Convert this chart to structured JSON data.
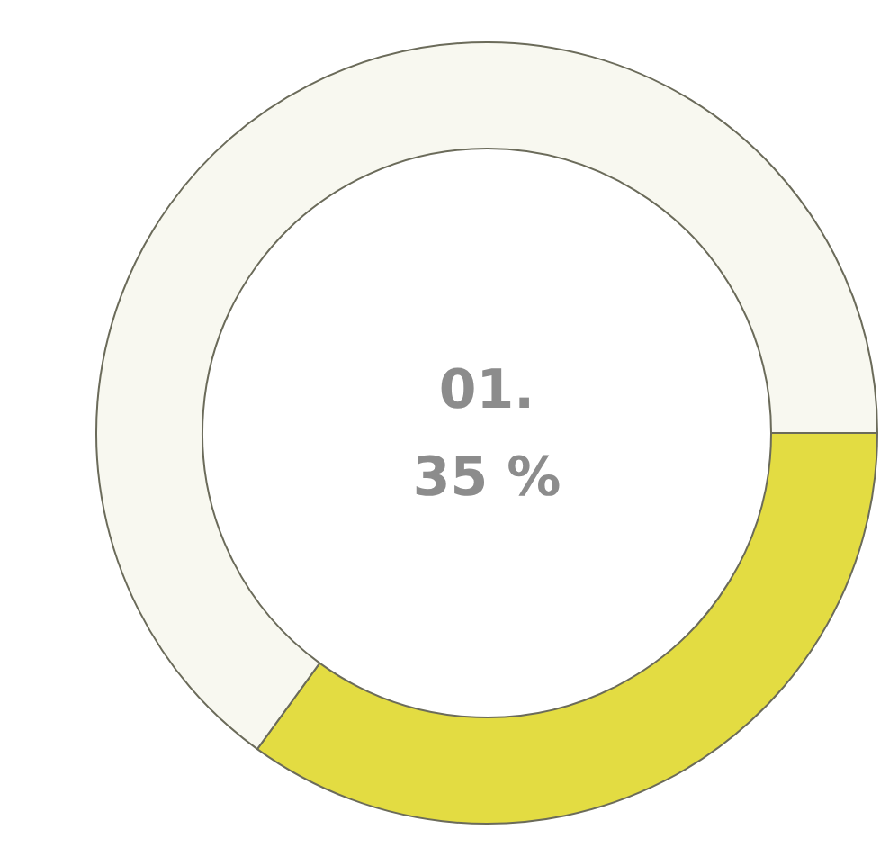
{
  "chart_data": {
    "type": "donut",
    "categories": [
      null,
      null
    ],
    "values": [
      35,
      65
    ],
    "colors": [
      "#e3dc42",
      "#f8f8f0"
    ],
    "annotations": [
      "01.",
      "35 %"
    ]
  }
}
